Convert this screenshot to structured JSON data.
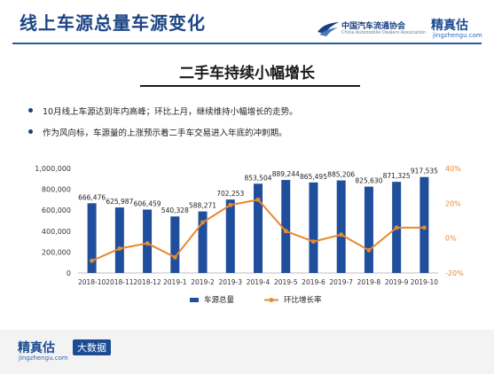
{
  "header": {
    "title": "线上车源总量车源变化",
    "cada_logo_text": "中国汽车流通协会",
    "cada_logo_sub": "China Automobile Dealers Association",
    "jzg_logo_text": "精真估",
    "jzg_logo_url": "jingzhengu.com"
  },
  "subtitle": "二手车持续小幅增长",
  "bullets": [
    "10月线上车源达到年内高峰；环比上月，继续维持小幅增长的走势。",
    "作为风向标，车源量的上涨预示着二手车交易进入年底的冲刺期。"
  ],
  "footer": {
    "logo_text": "精真估",
    "logo_url": "jingzhengu.com",
    "tag": "大数据"
  },
  "colors": {
    "bar": "#1f4e9c",
    "line": "#e8882e",
    "accent": "#1c4584"
  },
  "chart_data": {
    "type": "bar",
    "categories": [
      "2018-10",
      "2018-11",
      "2018-12",
      "2019-1",
      "2019-2",
      "2019-3",
      "2019-4",
      "2019-5",
      "2019-6",
      "2019-7",
      "2019-8",
      "2019-9",
      "2019-10"
    ],
    "series": [
      {
        "name": "车源总量",
        "type": "bar",
        "axis": "left",
        "values": [
          666476,
          625987,
          606459,
          540328,
          588271,
          702253,
          853504,
          889244,
          865495,
          885206,
          825630,
          871325,
          917535
        ],
        "labels": [
          "666,476",
          "625,987",
          "606,459",
          "540,328",
          "588,271",
          "702,253",
          "853,504",
          "889,244",
          "865,495",
          "885,206",
          "825,630",
          "871,325",
          "917,535"
        ]
      },
      {
        "name": "环比增长率",
        "type": "line",
        "axis": "right",
        "values": [
          -13,
          -6,
          -3,
          -11,
          9,
          19,
          22,
          4,
          -2,
          2,
          -7,
          6,
          6
        ]
      }
    ],
    "y_left": {
      "min": 0,
      "max": 1000000,
      "ticks": [
        "0",
        "200,000",
        "400,000",
        "600,000",
        "800,000",
        "1,000,000"
      ]
    },
    "y_right": {
      "min": -20,
      "max": 40,
      "ticks": [
        "-20%",
        "0%",
        "20%",
        "40%"
      ]
    },
    "legend_position": "bottom"
  }
}
